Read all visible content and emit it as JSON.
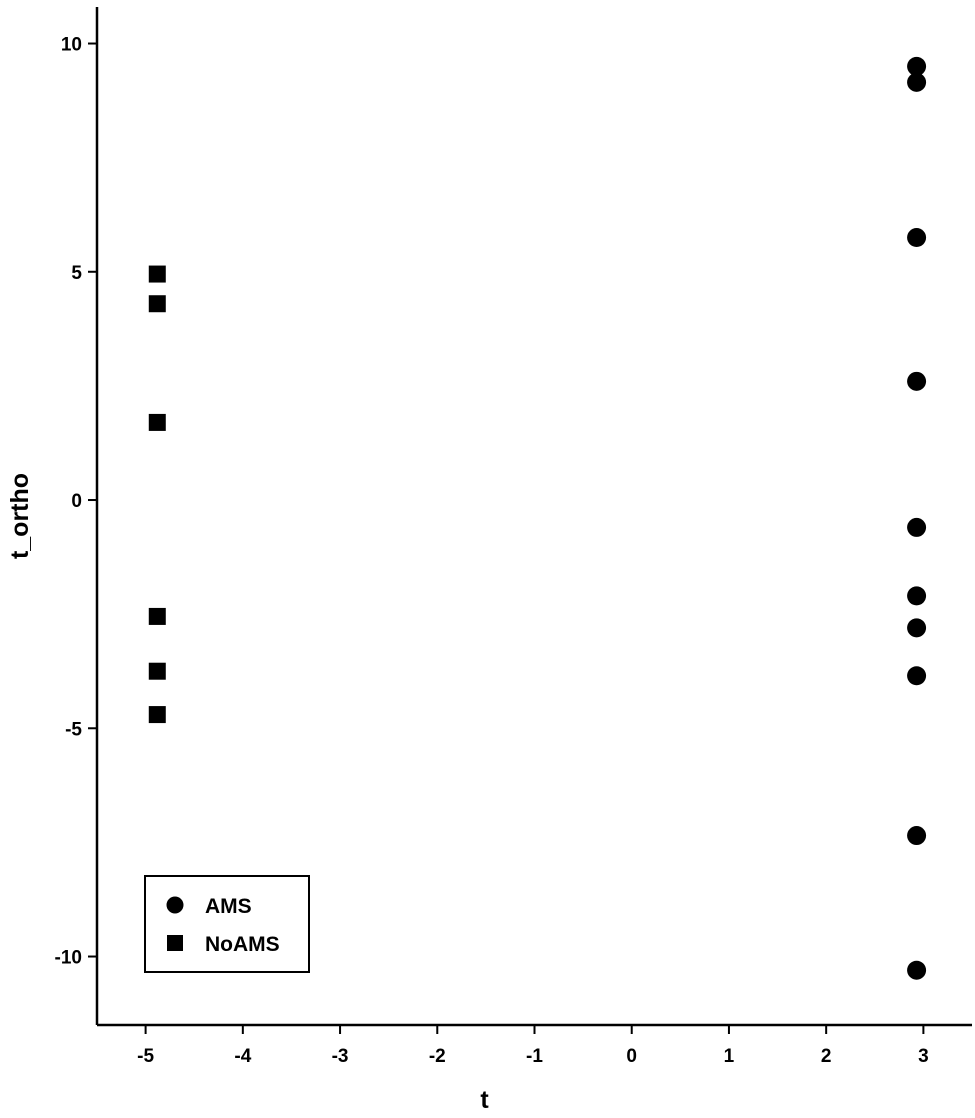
{
  "chart_data": {
    "type": "scatter",
    "title": "",
    "xlabel": "t",
    "ylabel": "t_ortho",
    "xlim": [
      -5.5,
      3.5
    ],
    "ylim": [
      -11.5,
      10.8
    ],
    "xticks": [
      -5,
      -4,
      -3,
      -2,
      -1,
      0,
      1,
      2,
      3
    ],
    "yticks": [
      -10,
      -5,
      0,
      5,
      10
    ],
    "grid": false,
    "legend_position": "bottom-left",
    "series": [
      {
        "name": "AMS",
        "marker": "circle",
        "color": "#000000",
        "points": [
          {
            "x": 2.93,
            "y": 9.5
          },
          {
            "x": 2.93,
            "y": 9.15
          },
          {
            "x": 2.93,
            "y": 5.75
          },
          {
            "x": 2.93,
            "y": 2.6
          },
          {
            "x": 2.93,
            "y": -0.6
          },
          {
            "x": 2.93,
            "y": -2.1
          },
          {
            "x": 2.93,
            "y": -2.8
          },
          {
            "x": 2.93,
            "y": -3.85
          },
          {
            "x": 2.93,
            "y": -7.35
          },
          {
            "x": 2.93,
            "y": -10.3
          }
        ]
      },
      {
        "name": "NoAMS",
        "marker": "square",
        "color": "#000000",
        "points": [
          {
            "x": -4.88,
            "y": 4.95
          },
          {
            "x": -4.88,
            "y": 4.3
          },
          {
            "x": -4.88,
            "y": 1.7
          },
          {
            "x": -4.88,
            "y": -2.55
          },
          {
            "x": -4.88,
            "y": -3.75
          },
          {
            "x": -4.88,
            "y": -4.7
          }
        ]
      }
    ]
  }
}
